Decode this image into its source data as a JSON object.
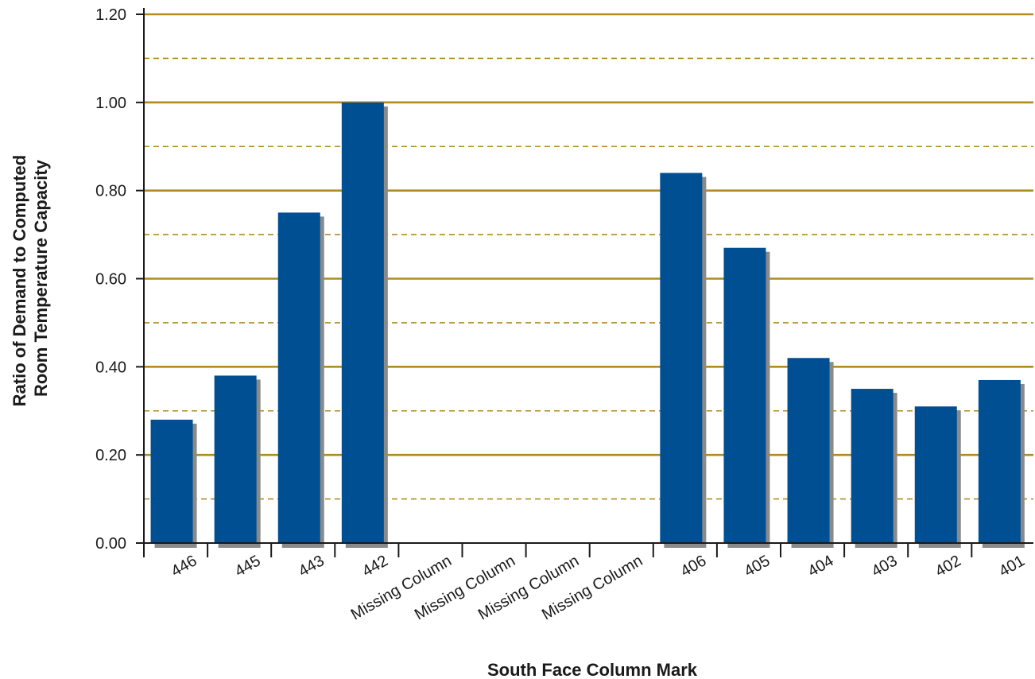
{
  "chart_data": {
    "type": "bar",
    "xlabel": "South Face Column Mark",
    "ylabel_lines": [
      "Ratio of Demand to Computed",
      "Room Temperature Capacity"
    ],
    "ylim": [
      0,
      1.2
    ],
    "yticks": [
      0.0,
      0.2,
      0.4,
      0.6,
      0.8,
      1.0,
      1.2
    ],
    "ytick_labels": [
      "0.00",
      "0.20",
      "0.40",
      "0.60",
      "0.80",
      "1.00",
      "1.20"
    ],
    "minor_gridlines": [
      0.1,
      0.3,
      0.5,
      0.7,
      0.9,
      1.1
    ],
    "grid": true,
    "categories": [
      "446",
      "445",
      "443",
      "442",
      "Missing Column",
      "Missing Column",
      "Missing Column",
      "Missing Column",
      "406",
      "405",
      "404",
      "403",
      "402",
      "401"
    ],
    "values": [
      0.28,
      0.38,
      0.75,
      1.0,
      null,
      null,
      null,
      null,
      0.84,
      0.67,
      0.42,
      0.35,
      0.31,
      0.37
    ],
    "colors": {
      "bar": "#004f93",
      "bar_shadow": "#8a8a8a",
      "major_grid": "#b28a1e",
      "minor_grid": "#b28a1e",
      "axis": "#1a1a1a"
    }
  }
}
